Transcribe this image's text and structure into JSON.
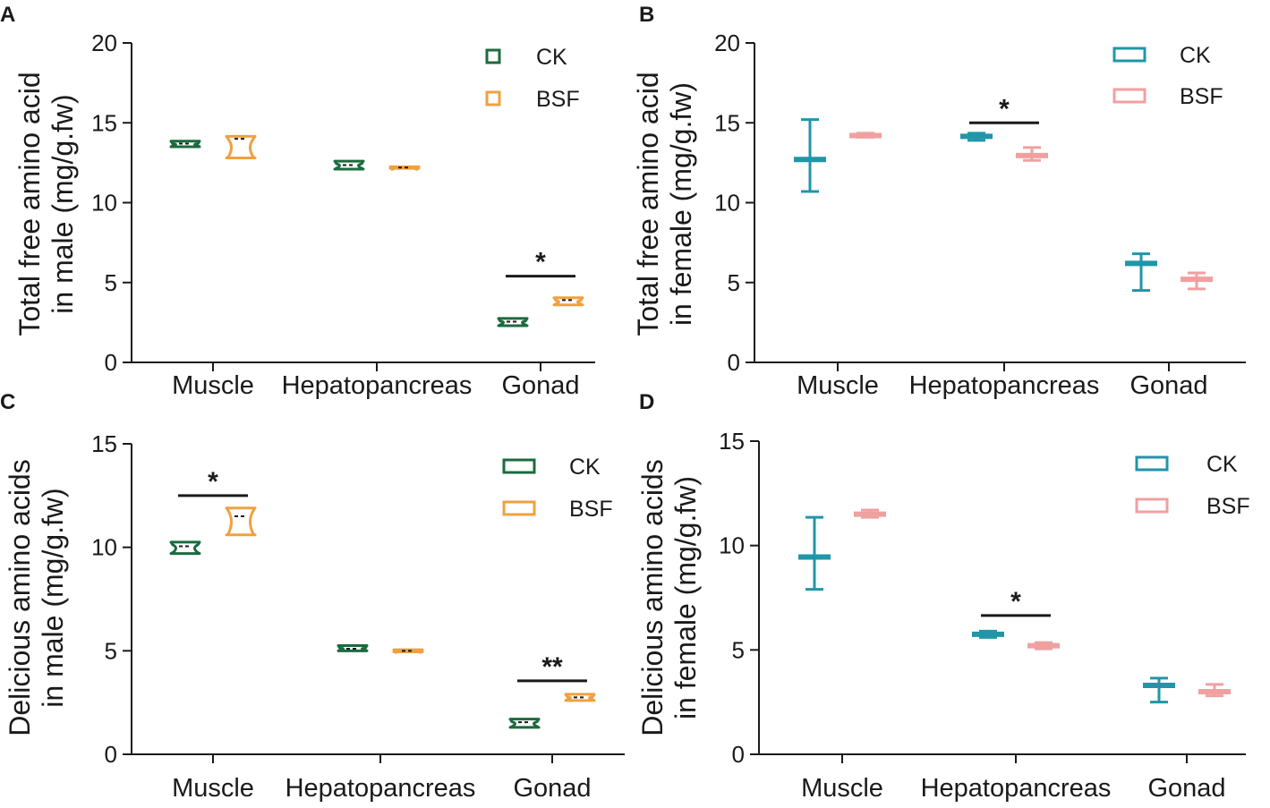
{
  "chart_data": [
    {
      "type": "violin",
      "panel": "A",
      "ylabel": [
        "Total free amino acid",
        "in male (mg/g.fw)"
      ],
      "categories": [
        "Muscle",
        "Hepatopancreas",
        "Gonad"
      ],
      "ylim": [
        0,
        20
      ],
      "yticks": [
        0,
        5,
        10,
        15,
        20
      ],
      "style": "violin",
      "legend": {
        "position": "top-right"
      },
      "series": [
        {
          "name": "CK",
          "color": "#1b6b3f",
          "points": [
            {
              "min": 13.5,
              "median": 13.7,
              "max": 13.85
            },
            {
              "min": 12.1,
              "median": 12.35,
              "max": 12.6
            },
            {
              "min": 2.3,
              "median": 2.55,
              "max": 2.75
            }
          ]
        },
        {
          "name": "BSF",
          "color": "#f0a040",
          "points": [
            {
              "min": 12.8,
              "median": 14.0,
              "max": 14.15
            },
            {
              "min": 12.15,
              "median": 12.2,
              "max": 12.25
            },
            {
              "min": 3.6,
              "median": 3.9,
              "max": 4.05
            }
          ]
        }
      ],
      "significance": [
        {
          "category": 2,
          "label": "*",
          "value": 5.4
        }
      ]
    },
    {
      "type": "errorbar",
      "panel": "B",
      "ylabel": [
        "Total free amino acid",
        "in female (mg/g.fw)"
      ],
      "categories": [
        "Muscle",
        "Hepatopancreas",
        "Gonad"
      ],
      "ylim": [
        0,
        20
      ],
      "yticks": [
        0,
        5,
        10,
        15,
        20
      ],
      "style": "errorbar",
      "legend": {
        "position": "top-right"
      },
      "series": [
        {
          "name": "CK",
          "color": "#2196a8",
          "points": [
            {
              "min": 10.7,
              "median": 12.7,
              "max": 15.2
            },
            {
              "min": 13.9,
              "median": 14.15,
              "max": 14.35
            },
            {
              "min": 4.5,
              "median": 6.2,
              "max": 6.8
            }
          ]
        },
        {
          "name": "BSF",
          "color": "#f0a0a0",
          "points": [
            {
              "min": 14.1,
              "median": 14.2,
              "max": 14.35
            },
            {
              "min": 12.65,
              "median": 12.95,
              "max": 13.45
            },
            {
              "min": 4.6,
              "median": 5.2,
              "max": 5.6
            }
          ]
        }
      ],
      "significance": [
        {
          "category": 1,
          "label": "*",
          "value": 15.0
        }
      ]
    },
    {
      "type": "violin",
      "panel": "C",
      "ylabel": [
        "Delicious amino acids",
        "in male (mg/g.fw)"
      ],
      "categories": [
        "Muscle",
        "Hepatopancreas",
        "Gonad"
      ],
      "ylim": [
        0,
        15
      ],
      "yticks": [
        0,
        5,
        10,
        15
      ],
      "style": "violin",
      "legend": {
        "position": "top-right"
      },
      "series": [
        {
          "name": "CK",
          "color": "#1b6b3f",
          "points": [
            {
              "min": 9.7,
              "median": 10.05,
              "max": 10.25
            },
            {
              "min": 5.0,
              "median": 5.1,
              "max": 5.25
            },
            {
              "min": 1.3,
              "median": 1.55,
              "max": 1.7
            }
          ]
        },
        {
          "name": "BSF",
          "color": "#f0a040",
          "points": [
            {
              "min": 10.6,
              "median": 11.5,
              "max": 11.9
            },
            {
              "min": 4.95,
              "median": 5.0,
              "max": 5.05
            },
            {
              "min": 2.6,
              "median": 2.75,
              "max": 2.9
            }
          ]
        }
      ],
      "significance": [
        {
          "category": 0,
          "label": "*",
          "value": 12.5
        },
        {
          "category": 2,
          "label": "**",
          "value": 3.55
        }
      ]
    },
    {
      "type": "errorbar",
      "panel": "D",
      "ylabel": [
        "Delicious amino acids",
        "in female (mg/g.fw)"
      ],
      "categories": [
        "Muscle",
        "Hepatopancreas",
        "Gonad"
      ],
      "ylim": [
        0,
        15
      ],
      "yticks": [
        0,
        5,
        10,
        15
      ],
      "style": "errorbar",
      "legend": {
        "position": "top-right"
      },
      "series": [
        {
          "name": "CK",
          "color": "#2196a8",
          "points": [
            {
              "min": 7.9,
              "median": 9.45,
              "max": 11.35
            },
            {
              "min": 5.6,
              "median": 5.75,
              "max": 5.9
            },
            {
              "min": 2.5,
              "median": 3.3,
              "max": 3.65
            }
          ]
        },
        {
          "name": "BSF",
          "color": "#f0a0a0",
          "points": [
            {
              "min": 11.35,
              "median": 11.5,
              "max": 11.7
            },
            {
              "min": 5.05,
              "median": 5.2,
              "max": 5.35
            },
            {
              "min": 2.8,
              "median": 3.0,
              "max": 3.35
            }
          ]
        }
      ],
      "significance": [
        {
          "category": 1,
          "label": "*",
          "value": 6.65
        }
      ]
    }
  ]
}
